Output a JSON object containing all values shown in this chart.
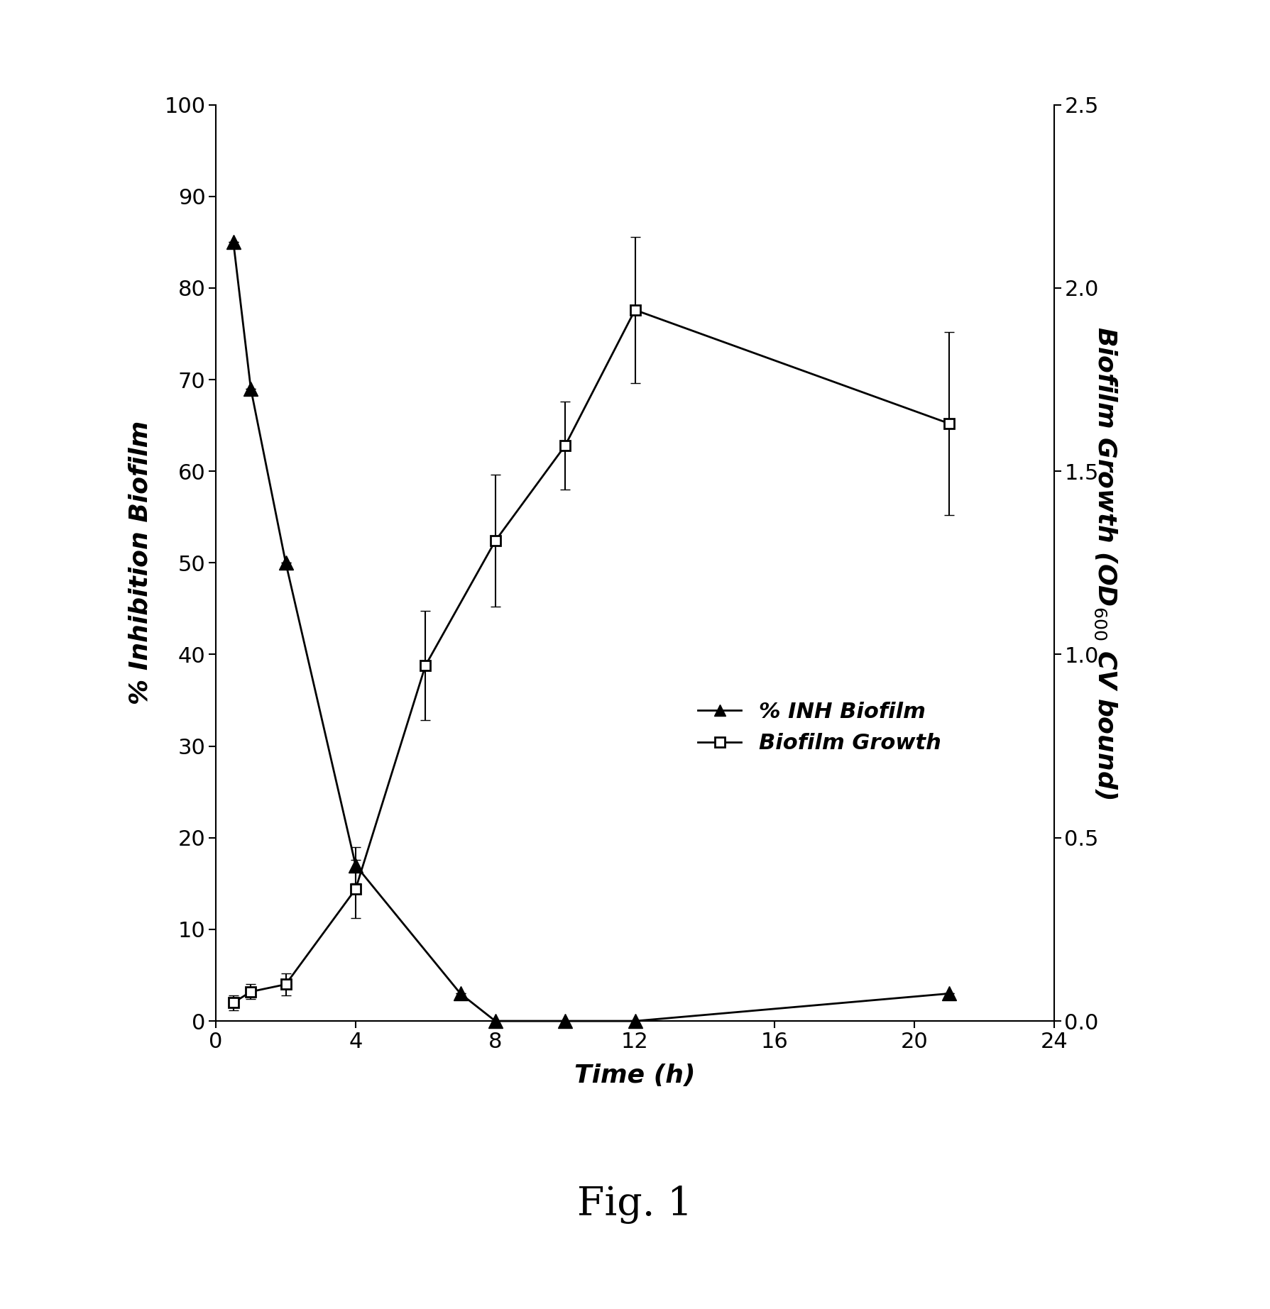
{
  "title": "Fig. 1",
  "ylabel_left": "% Inhibition Biofilm",
  "xlabel": "Time (h)",
  "ylim_left": [
    0,
    100
  ],
  "ylim_right": [
    0,
    2.5
  ],
  "xlim": [
    0,
    24
  ],
  "xticks": [
    0,
    4,
    8,
    12,
    16,
    20,
    24
  ],
  "yticks_left": [
    0,
    10,
    20,
    30,
    40,
    50,
    60,
    70,
    80,
    90,
    100
  ],
  "yticks_right": [
    0,
    0.5,
    1.0,
    1.5,
    2.0,
    2.5
  ],
  "inh_x": [
    0.5,
    1,
    2,
    4,
    7,
    8,
    10,
    12,
    21
  ],
  "inh_y": [
    85,
    69,
    50,
    17,
    3,
    0,
    0,
    0,
    3
  ],
  "inh_yerr": [
    0,
    0,
    0,
    2,
    0,
    0,
    0,
    0,
    0
  ],
  "growth_x": [
    0.5,
    1,
    2,
    4,
    6,
    8,
    10,
    12,
    21
  ],
  "growth_y": [
    0.05,
    0.08,
    0.1,
    0.36,
    0.97,
    1.31,
    1.57,
    1.94,
    1.63
  ],
  "growth_yerr": [
    0.02,
    0.02,
    0.03,
    0.08,
    0.15,
    0.18,
    0.12,
    0.2,
    0.25
  ],
  "inh_color": "#000000",
  "growth_color": "#000000",
  "background_color": "#ffffff",
  "legend_inh": "% INH Biofilm",
  "legend_growth": "Biofilm Growth",
  "line_width": 2.0,
  "marker_size_triangle": 14,
  "marker_size_square": 10,
  "tick_labelsize": 22,
  "axis_labelsize": 26,
  "fig_label_size": 40,
  "legend_fontsize": 22
}
